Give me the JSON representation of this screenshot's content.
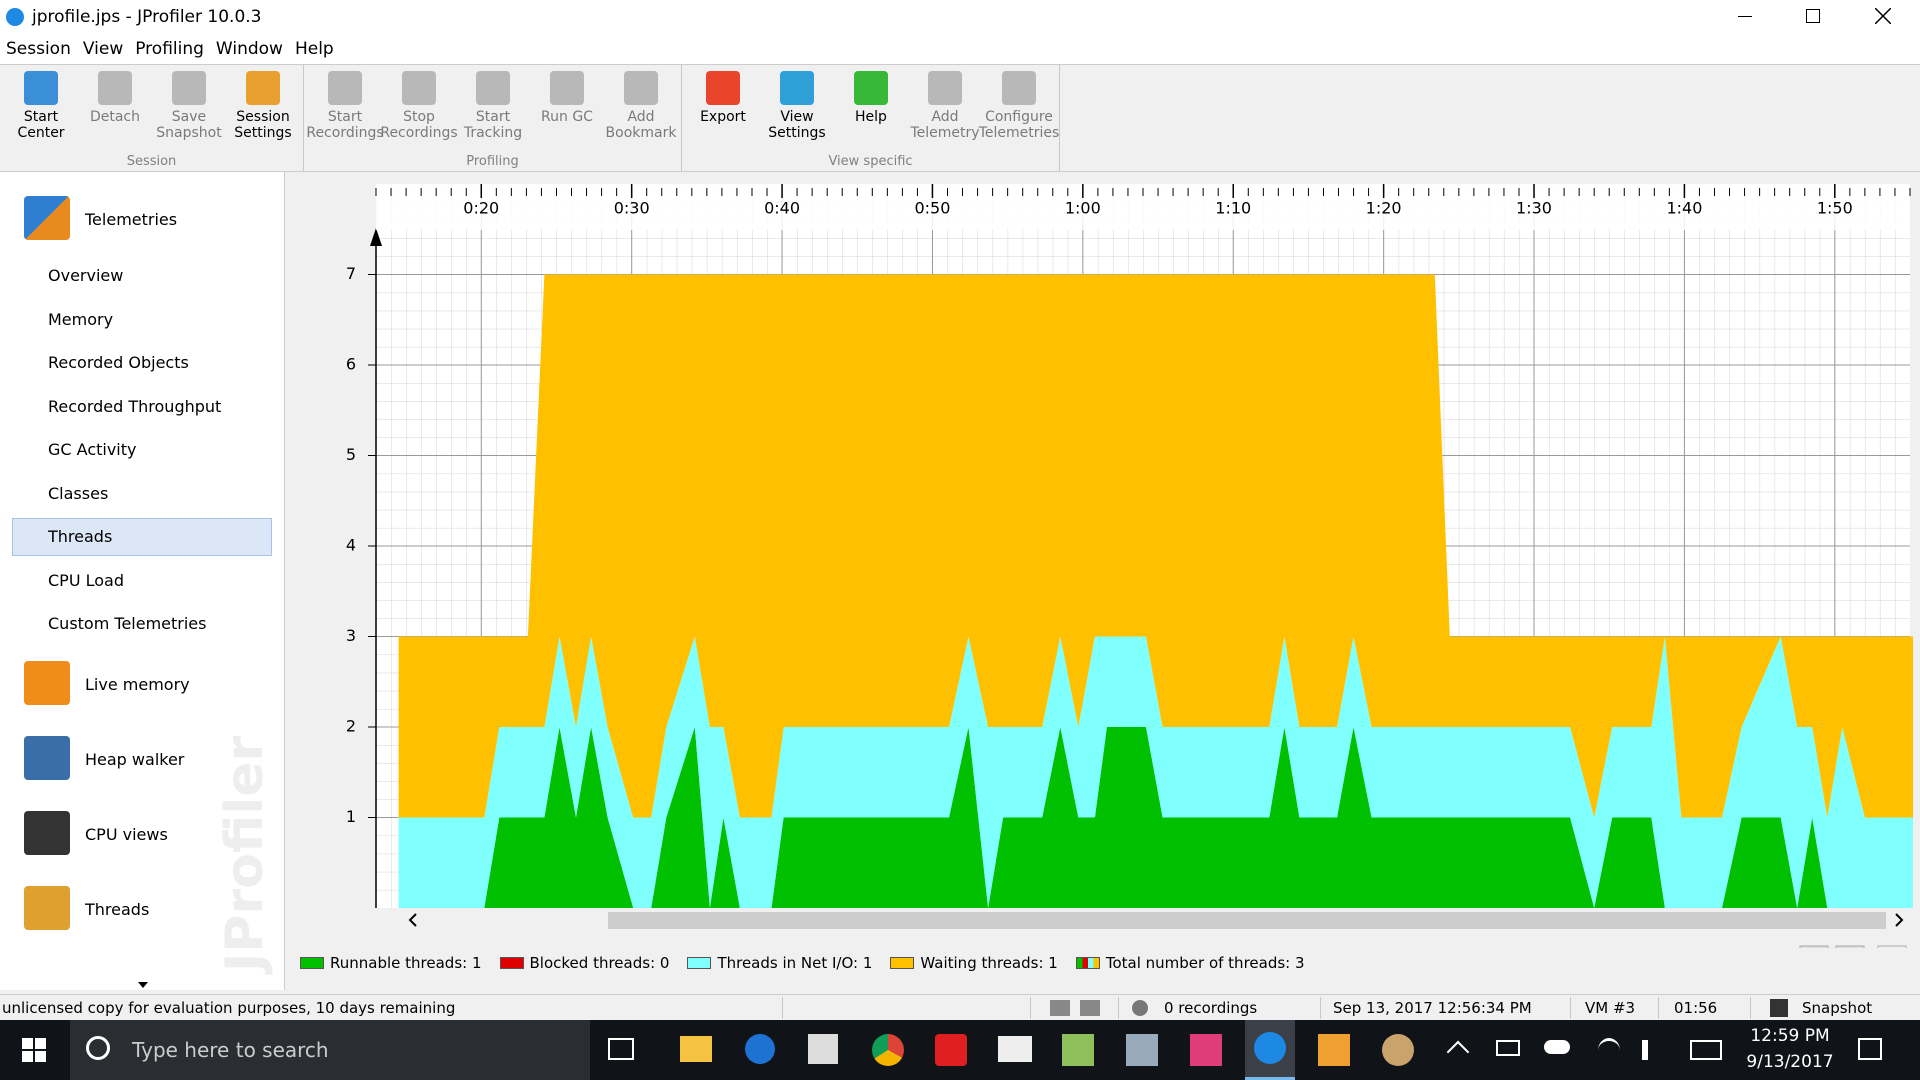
{
  "window": {
    "title": "jprofile.jps - JProfiler 10.0.3"
  },
  "menu": [
    "Session",
    "View",
    "Profiling",
    "Window",
    "Help"
  ],
  "toolbar": [
    {
      "label": "Session",
      "buttons": [
        {
          "text": "Start\nCenter",
          "enabled": true
        },
        {
          "text": "Detach",
          "enabled": false
        },
        {
          "text": "Save\nSnapshot",
          "enabled": false
        },
        {
          "text": "Session\nSettings",
          "enabled": true
        }
      ]
    },
    {
      "label": "Profiling",
      "buttons": [
        {
          "text": "Start\nRecordings",
          "enabled": false
        },
        {
          "text": "Stop\nRecordings",
          "enabled": false
        },
        {
          "text": "Start\nTracking",
          "enabled": false
        },
        {
          "text": "Run GC",
          "enabled": false
        },
        {
          "text": "Add\nBookmark",
          "enabled": false
        }
      ]
    },
    {
      "label": "View specific",
      "buttons": [
        {
          "text": "Export",
          "enabled": true
        },
        {
          "text": "View\nSettings",
          "enabled": true
        },
        {
          "text": "Help",
          "enabled": true
        },
        {
          "text": "Add\nTelemetry",
          "enabled": false
        },
        {
          "text": "Configure\nTelemetries",
          "enabled": false
        }
      ]
    }
  ],
  "sidebar": {
    "header": "Telemetries",
    "items": [
      "Overview",
      "Memory",
      "Recorded Objects",
      "Recorded Throughput",
      "GC Activity",
      "Classes",
      "Threads",
      "CPU Load",
      "Custom Telemetries"
    ],
    "selected": "Threads",
    "sections": [
      "Live memory",
      "Heap walker",
      "CPU views",
      "Threads"
    ],
    "watermark": "JProfiler"
  },
  "chart_data": {
    "type": "area",
    "stacked": true,
    "x": [
      14.5,
      20.2,
      21.2,
      23.1,
      24.2,
      25.2,
      26.3,
      27.3,
      28.4,
      30.1,
      31.3,
      32.3,
      34.2,
      35.2,
      36.1,
      37.2,
      39.3,
      40.1,
      51.1,
      52.4,
      53.7,
      54.7,
      57.3,
      58.5,
      59.7,
      60.8,
      61.6,
      64.2,
      65.3,
      72.4,
      73.4,
      74.4,
      76.9,
      78.0,
      79.2,
      83.4,
      84.4,
      92.4,
      94.0,
      95.2,
      97.8,
      98.7,
      99.8,
      102.5,
      103.8,
      106.4,
      107.5,
      108.5,
      109.5,
      110.5,
      112.0,
      115.2
    ],
    "series": [
      {
        "name": "Runnable threads",
        "color": "#00c000",
        "current": 1,
        "values": [
          0,
          0,
          1,
          1,
          1,
          2,
          1,
          2,
          1,
          0,
          0,
          1,
          2,
          0,
          1,
          0,
          0,
          1,
          1,
          2,
          0,
          1,
          1,
          2,
          1,
          1,
          2,
          2,
          1,
          1,
          2,
          1,
          1,
          2,
          1,
          1,
          1,
          1,
          0,
          1,
          1,
          0,
          0,
          0,
          1,
          1,
          0,
          1,
          0,
          0,
          0,
          0
        ]
      },
      {
        "name": "Blocked threads",
        "color": "#e00000",
        "current": 0,
        "values": [
          0,
          0,
          0,
          0,
          0,
          0,
          0,
          0,
          0,
          0,
          0,
          0,
          0,
          0,
          0,
          0,
          0,
          0,
          0,
          0,
          0,
          0,
          0,
          0,
          0,
          0,
          0,
          0,
          0,
          0,
          0,
          0,
          0,
          0,
          0,
          0,
          0,
          0,
          0,
          0,
          0,
          0,
          0,
          0,
          0,
          0,
          0,
          0,
          0,
          0,
          0,
          0
        ]
      },
      {
        "name": "Threads in Net I/O",
        "color": "#80ffff",
        "current": 1,
        "values": [
          1,
          1,
          1,
          1,
          1,
          1,
          1,
          1,
          1,
          1,
          1,
          1,
          1,
          2,
          1,
          1,
          1,
          1,
          1,
          1,
          2,
          1,
          1,
          1,
          1,
          2,
          1,
          1,
          1,
          1,
          1,
          1,
          1,
          1,
          1,
          1,
          1,
          1,
          1,
          1,
          1,
          3,
          1,
          1,
          1,
          2,
          2,
          1,
          1,
          2,
          1,
          1
        ]
      },
      {
        "name": "Waiting threads",
        "color": "#ffc000",
        "current": 1,
        "values": [
          2,
          2,
          1,
          1,
          5,
          4,
          5,
          4,
          5,
          6,
          6,
          5,
          4,
          5,
          5,
          6,
          6,
          5,
          5,
          4,
          5,
          5,
          5,
          4,
          5,
          4,
          4,
          4,
          5,
          5,
          4,
          5,
          5,
          4,
          5,
          5,
          1,
          1,
          2,
          1,
          1,
          0,
          2,
          2,
          1,
          0,
          1,
          1,
          2,
          1,
          2,
          2
        ]
      }
    ],
    "total": {
      "name": "Total number of threads",
      "current": 3
    },
    "xlim": [
      13,
      115
    ],
    "xticks": [
      {
        "value": 20,
        "label": "0:20"
      },
      {
        "value": 30,
        "label": "0:30"
      },
      {
        "value": 40,
        "label": "0:40"
      },
      {
        "value": 50,
        "label": "0:50"
      },
      {
        "value": 60,
        "label": "1:00"
      },
      {
        "value": 70,
        "label": "1:10"
      },
      {
        "value": 80,
        "label": "1:20"
      },
      {
        "value": 90,
        "label": "1:30"
      },
      {
        "value": 100,
        "label": "1:40"
      },
      {
        "value": 110,
        "label": "1:50"
      }
    ],
    "ylim": [
      0,
      8
    ],
    "yticks": [
      1,
      2,
      3,
      4,
      5,
      6,
      7
    ],
    "grid": true
  },
  "statusbar": {
    "license": "unlicensed copy for evaluation purposes, 10 days remaining",
    "recordings": "0 recordings",
    "timestamp": "Sep 13, 2017 12:56:34 PM",
    "vm": "VM #3",
    "elapsed": "01:56",
    "mode": "Snapshot"
  },
  "taskbar": {
    "search": "Type here to search",
    "time": "12:59 PM",
    "date": "9/13/2017"
  }
}
